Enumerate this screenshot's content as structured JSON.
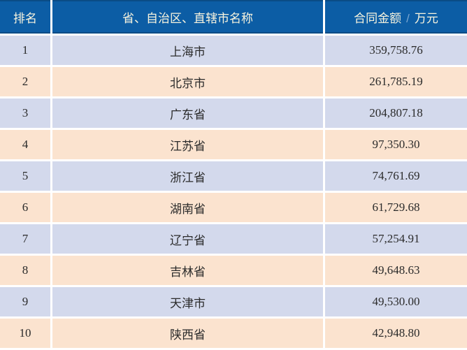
{
  "table": {
    "columns": [
      {
        "label": "排名"
      },
      {
        "label": "省、自治区、直辖市名称"
      },
      {
        "label": "合同金额",
        "sep": "/",
        "unit": "万元"
      }
    ],
    "rows": [
      {
        "rank": "1",
        "region": "上海市",
        "amount": "359,758.76"
      },
      {
        "rank": "2",
        "region": "北京市",
        "amount": "261,785.19"
      },
      {
        "rank": "3",
        "region": "广东省",
        "amount": "204,807.18"
      },
      {
        "rank": "4",
        "region": "江苏省",
        "amount": "97,350.30"
      },
      {
        "rank": "5",
        "region": "浙江省",
        "amount": "74,761.69"
      },
      {
        "rank": "6",
        "region": "湖南省",
        "amount": "61,729.68"
      },
      {
        "rank": "7",
        "region": "辽宁省",
        "amount": "57,254.91"
      },
      {
        "rank": "8",
        "region": "吉林省",
        "amount": "49,648.63"
      },
      {
        "rank": "9",
        "region": "天津市",
        "amount": "49,530.00"
      },
      {
        "rank": "10",
        "region": "陕西省",
        "amount": "42,948.80"
      }
    ]
  },
  "colors": {
    "header_bg": "#0C5DA5",
    "header_border": "#0A4C86",
    "header_text": "#F8F4DE",
    "header_separator": "#7AA6CF",
    "row_blue": "#D3D9EC",
    "row_peach": "#FBE3CF",
    "body_text": "#2B2B2B",
    "grid_divider": "#FFFFFF"
  },
  "chart_data": {
    "type": "table",
    "columns": [
      "排名",
      "省、自治区、直辖市名称",
      "合同金额 / 万元"
    ],
    "rows": [
      [
        1,
        "上海市",
        359758.76
      ],
      [
        2,
        "北京市",
        261785.19
      ],
      [
        3,
        "广东省",
        204807.18
      ],
      [
        4,
        "江苏省",
        97350.3
      ],
      [
        5,
        "浙江省",
        74761.69
      ],
      [
        6,
        "湖南省",
        61729.68
      ],
      [
        7,
        "辽宁省",
        57254.91
      ],
      [
        8,
        "吉林省",
        49648.63
      ],
      [
        9,
        "天津市",
        49530.0
      ],
      [
        10,
        "陕西省",
        42948.8
      ]
    ],
    "layout": {
      "header_style": "blue background, pale yellow text",
      "row_striping": "alternating light blue (odd ranks) and light peach (even ranks)",
      "gridlines": "3px white dividers between all cells"
    }
  }
}
